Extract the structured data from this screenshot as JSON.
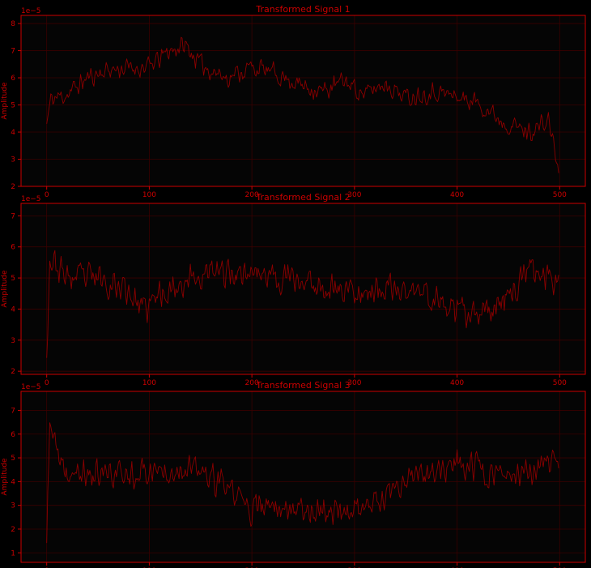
{
  "colors": {
    "background": "#000000",
    "axes_face": "#050505",
    "accent": "#cc0000",
    "line": "#8b0000",
    "grid": "#3a0000"
  },
  "chart_data": [
    {
      "type": "line",
      "title": "Transformed Signal 1",
      "xlabel": "",
      "ylabel": "Amplitude",
      "offset_label": "1e−5",
      "xlim": [
        -25,
        525
      ],
      "ylim": [
        2,
        8.3
      ],
      "xticks": [
        0,
        100,
        200,
        300,
        400,
        500
      ],
      "yticks": [
        2,
        3,
        4,
        5,
        6,
        7,
        8
      ],
      "grid": true,
      "n_points": 500,
      "trend_knots": [
        [
          0,
          4.3
        ],
        [
          4,
          5.2
        ],
        [
          20,
          5.4
        ],
        [
          40,
          6.0
        ],
        [
          60,
          6.3
        ],
        [
          100,
          6.4
        ],
        [
          120,
          7.0
        ],
        [
          135,
          7.2
        ],
        [
          150,
          6.5
        ],
        [
          175,
          6.0
        ],
        [
          200,
          6.4
        ],
        [
          220,
          6.2
        ],
        [
          250,
          5.7
        ],
        [
          270,
          5.5
        ],
        [
          290,
          5.9
        ],
        [
          310,
          5.4
        ],
        [
          330,
          5.8
        ],
        [
          350,
          5.3
        ],
        [
          380,
          5.5
        ],
        [
          420,
          5.1
        ],
        [
          445,
          4.4
        ],
        [
          470,
          4.0
        ],
        [
          490,
          4.4
        ],
        [
          500,
          2.3
        ]
      ],
      "noise_amplitude": 0.45,
      "seed": 11
    },
    {
      "type": "line",
      "title": "Transformed Signal 2",
      "xlabel": "",
      "ylabel": "Amplitude",
      "offset_label": "1e−5",
      "xlim": [
        -25,
        525
      ],
      "ylim": [
        1.9,
        7.4
      ],
      "xticks": [
        0,
        100,
        200,
        300,
        400,
        500
      ],
      "yticks": [
        2,
        3,
        4,
        5,
        6,
        7
      ],
      "grid": true,
      "n_points": 500,
      "trend_knots": [
        [
          0,
          2.7
        ],
        [
          3,
          5.6
        ],
        [
          20,
          5.0
        ],
        [
          50,
          5.0
        ],
        [
          80,
          4.6
        ],
        [
          95,
          3.9
        ],
        [
          110,
          4.5
        ],
        [
          140,
          5.0
        ],
        [
          170,
          5.2
        ],
        [
          200,
          5.2
        ],
        [
          230,
          5.0
        ],
        [
          260,
          4.8
        ],
        [
          300,
          4.6
        ],
        [
          340,
          4.6
        ],
        [
          370,
          4.5
        ],
        [
          400,
          3.9
        ],
        [
          420,
          3.7
        ],
        [
          440,
          4.2
        ],
        [
          470,
          5.2
        ],
        [
          500,
          5.0
        ]
      ],
      "noise_amplitude": 0.6,
      "seed": 23
    },
    {
      "type": "line",
      "title": "Transformed Signal 3",
      "xlabel": "",
      "ylabel": "Amplitude",
      "offset_label": "1e−5",
      "xlim": [
        -25,
        525
      ],
      "ylim": [
        0.6,
        7.8
      ],
      "xticks": [
        0,
        100,
        200,
        300,
        400,
        500
      ],
      "yticks": [
        1,
        2,
        3,
        4,
        5,
        6,
        7
      ],
      "grid": true,
      "n_points": 500,
      "trend_knots": [
        [
          0,
          1.4
        ],
        [
          3,
          6.6
        ],
        [
          15,
          4.3
        ],
        [
          50,
          4.3
        ],
        [
          90,
          4.4
        ],
        [
          130,
          4.6
        ],
        [
          150,
          4.4
        ],
        [
          180,
          3.6
        ],
        [
          200,
          2.8
        ],
        [
          230,
          3.0
        ],
        [
          270,
          2.8
        ],
        [
          300,
          2.8
        ],
        [
          330,
          3.2
        ],
        [
          360,
          4.2
        ],
        [
          400,
          4.7
        ],
        [
          420,
          4.6
        ],
        [
          450,
          4.1
        ],
        [
          480,
          4.5
        ],
        [
          500,
          5.0
        ]
      ],
      "noise_amplitude": 0.75,
      "seed": 37
    }
  ]
}
